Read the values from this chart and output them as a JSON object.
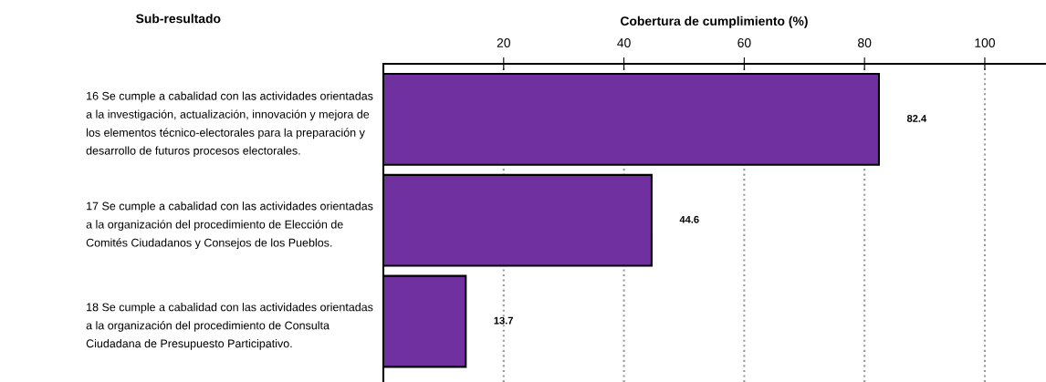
{
  "chart_data": {
    "type": "bar",
    "orientation": "horizontal",
    "xlabel": "Cobertura de cumplimiento (%)",
    "ylabel": "Sub-resultado",
    "categories": [
      "16 Se cumple a cabalidad con las actividades orientadas\na la investigación, actualización, innovación y mejora de\nlos elementos técnico-electorales para la preparación y\ndesarrollo de futuros procesos electorales.",
      "17 Se cumple a cabalidad con las actividades orientadas\na la organización del procedimiento de Elección de\nComités Ciudadanos y Consejos de los Pueblos.",
      "18 Se cumple a cabalidad con las actividades orientadas\na la organización del procedimiento de Consulta\nCiudadana de Presupuesto Participativo."
    ],
    "values": [
      82.4,
      44.6,
      13.7
    ],
    "color": "#7030a0",
    "xlim": [
      0,
      110
    ],
    "xticks": [
      20,
      40,
      60,
      80,
      100
    ],
    "grid": "x",
    "data_labels": true
  }
}
